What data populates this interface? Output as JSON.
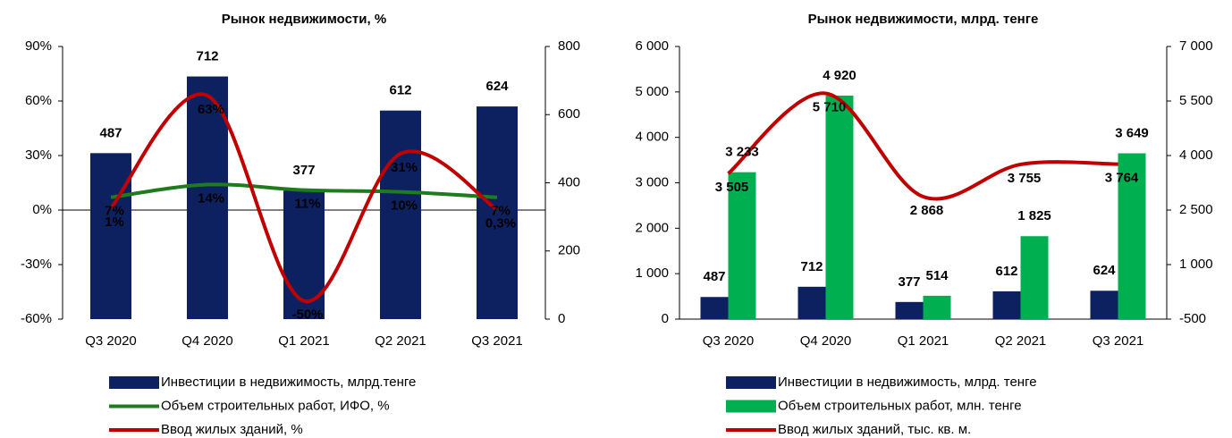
{
  "chart_data": [
    {
      "type": "combo",
      "title": "Рынок недвижимости, %",
      "categories": [
        "Q3 2020",
        "Q4 2020",
        "Q1 2021",
        "Q2 2021",
        "Q3 2021"
      ],
      "ylim": [
        -60,
        90
      ],
      "yticks": [
        {
          "value": -60,
          "label": "-60%"
        },
        {
          "value": -30,
          "label": "-30%"
        },
        {
          "value": 0,
          "label": "0%"
        },
        {
          "value": 30,
          "label": "30%"
        },
        {
          "value": 60,
          "label": "60%"
        },
        {
          "value": 90,
          "label": "90%"
        }
      ],
      "y2lim": [
        0,
        800
      ],
      "y2ticks": [
        0,
        200,
        400,
        600,
        800
      ],
      "series": [
        {
          "name": "Инвестиции в недвижимость, млрд.тенге",
          "type": "bar",
          "axis": "y2",
          "color": "#0d2160",
          "values": [
            487,
            712,
            377,
            612,
            624
          ]
        },
        {
          "name": "Объем строительных работ, ИФО, %",
          "type": "line",
          "color": "#1e7b1e",
          "values": [
            7,
            14,
            11,
            10,
            7
          ],
          "value_labels": [
            "7%",
            "14%",
            "11%",
            "10%",
            "7%"
          ]
        },
        {
          "name": "Ввод жилых зданий, %",
          "type": "line",
          "color": "#c00000",
          "values": [
            1,
            63,
            -50,
            31,
            0.3
          ],
          "value_labels": [
            "1%",
            "63%",
            "-50%",
            "31%",
            "0,3%"
          ]
        }
      ]
    },
    {
      "type": "combo",
      "title": "Рынок недвижимости, млрд. тенге",
      "categories": [
        "Q3 2020",
        "Q4 2020",
        "Q1 2021",
        "Q2 2021",
        "Q3 2021"
      ],
      "ylim": [
        0,
        6000
      ],
      "yticks": [
        0,
        {
          "value": 1000,
          "label": "1 000"
        },
        {
          "value": 2000,
          "label": "2 000"
        },
        {
          "value": 3000,
          "label": "3 000"
        },
        {
          "value": 4000,
          "label": "4 000"
        },
        {
          "value": 5000,
          "label": "5 000"
        },
        {
          "value": 6000,
          "label": "6 000"
        }
      ],
      "y2lim": [
        -500,
        7000
      ],
      "y2ticks": [
        -500,
        {
          "value": 1000,
          "label": "1 000"
        },
        {
          "value": 2500,
          "label": "2 500"
        },
        {
          "value": 4000,
          "label": "4 000"
        },
        {
          "value": 5500,
          "label": "5 500"
        },
        {
          "value": 7000,
          "label": "7 000"
        }
      ],
      "series": [
        {
          "name": "Инвестиции в недвижимость, млрд. тенге",
          "type": "bar",
          "color": "#0d2160",
          "values": [
            487,
            712,
            377,
            612,
            624
          ]
        },
        {
          "name": "Объем строительных работ, млн. тенге",
          "type": "bar",
          "color": "#00b050",
          "values": [
            3233,
            4920,
            514,
            1825,
            3649
          ],
          "value_labels": [
            "3 233",
            "4 920",
            "514",
            "1 825",
            "3 649"
          ]
        },
        {
          "name": "Ввод жилых зданий, тыс. кв. м.",
          "type": "line",
          "axis": "y2",
          "color": "#c00000",
          "values": [
            3505,
            5710,
            2868,
            3755,
            3764
          ],
          "value_labels": [
            "3 505",
            "5 710",
            "2 868",
            "3 755",
            "3 764"
          ]
        }
      ]
    }
  ]
}
